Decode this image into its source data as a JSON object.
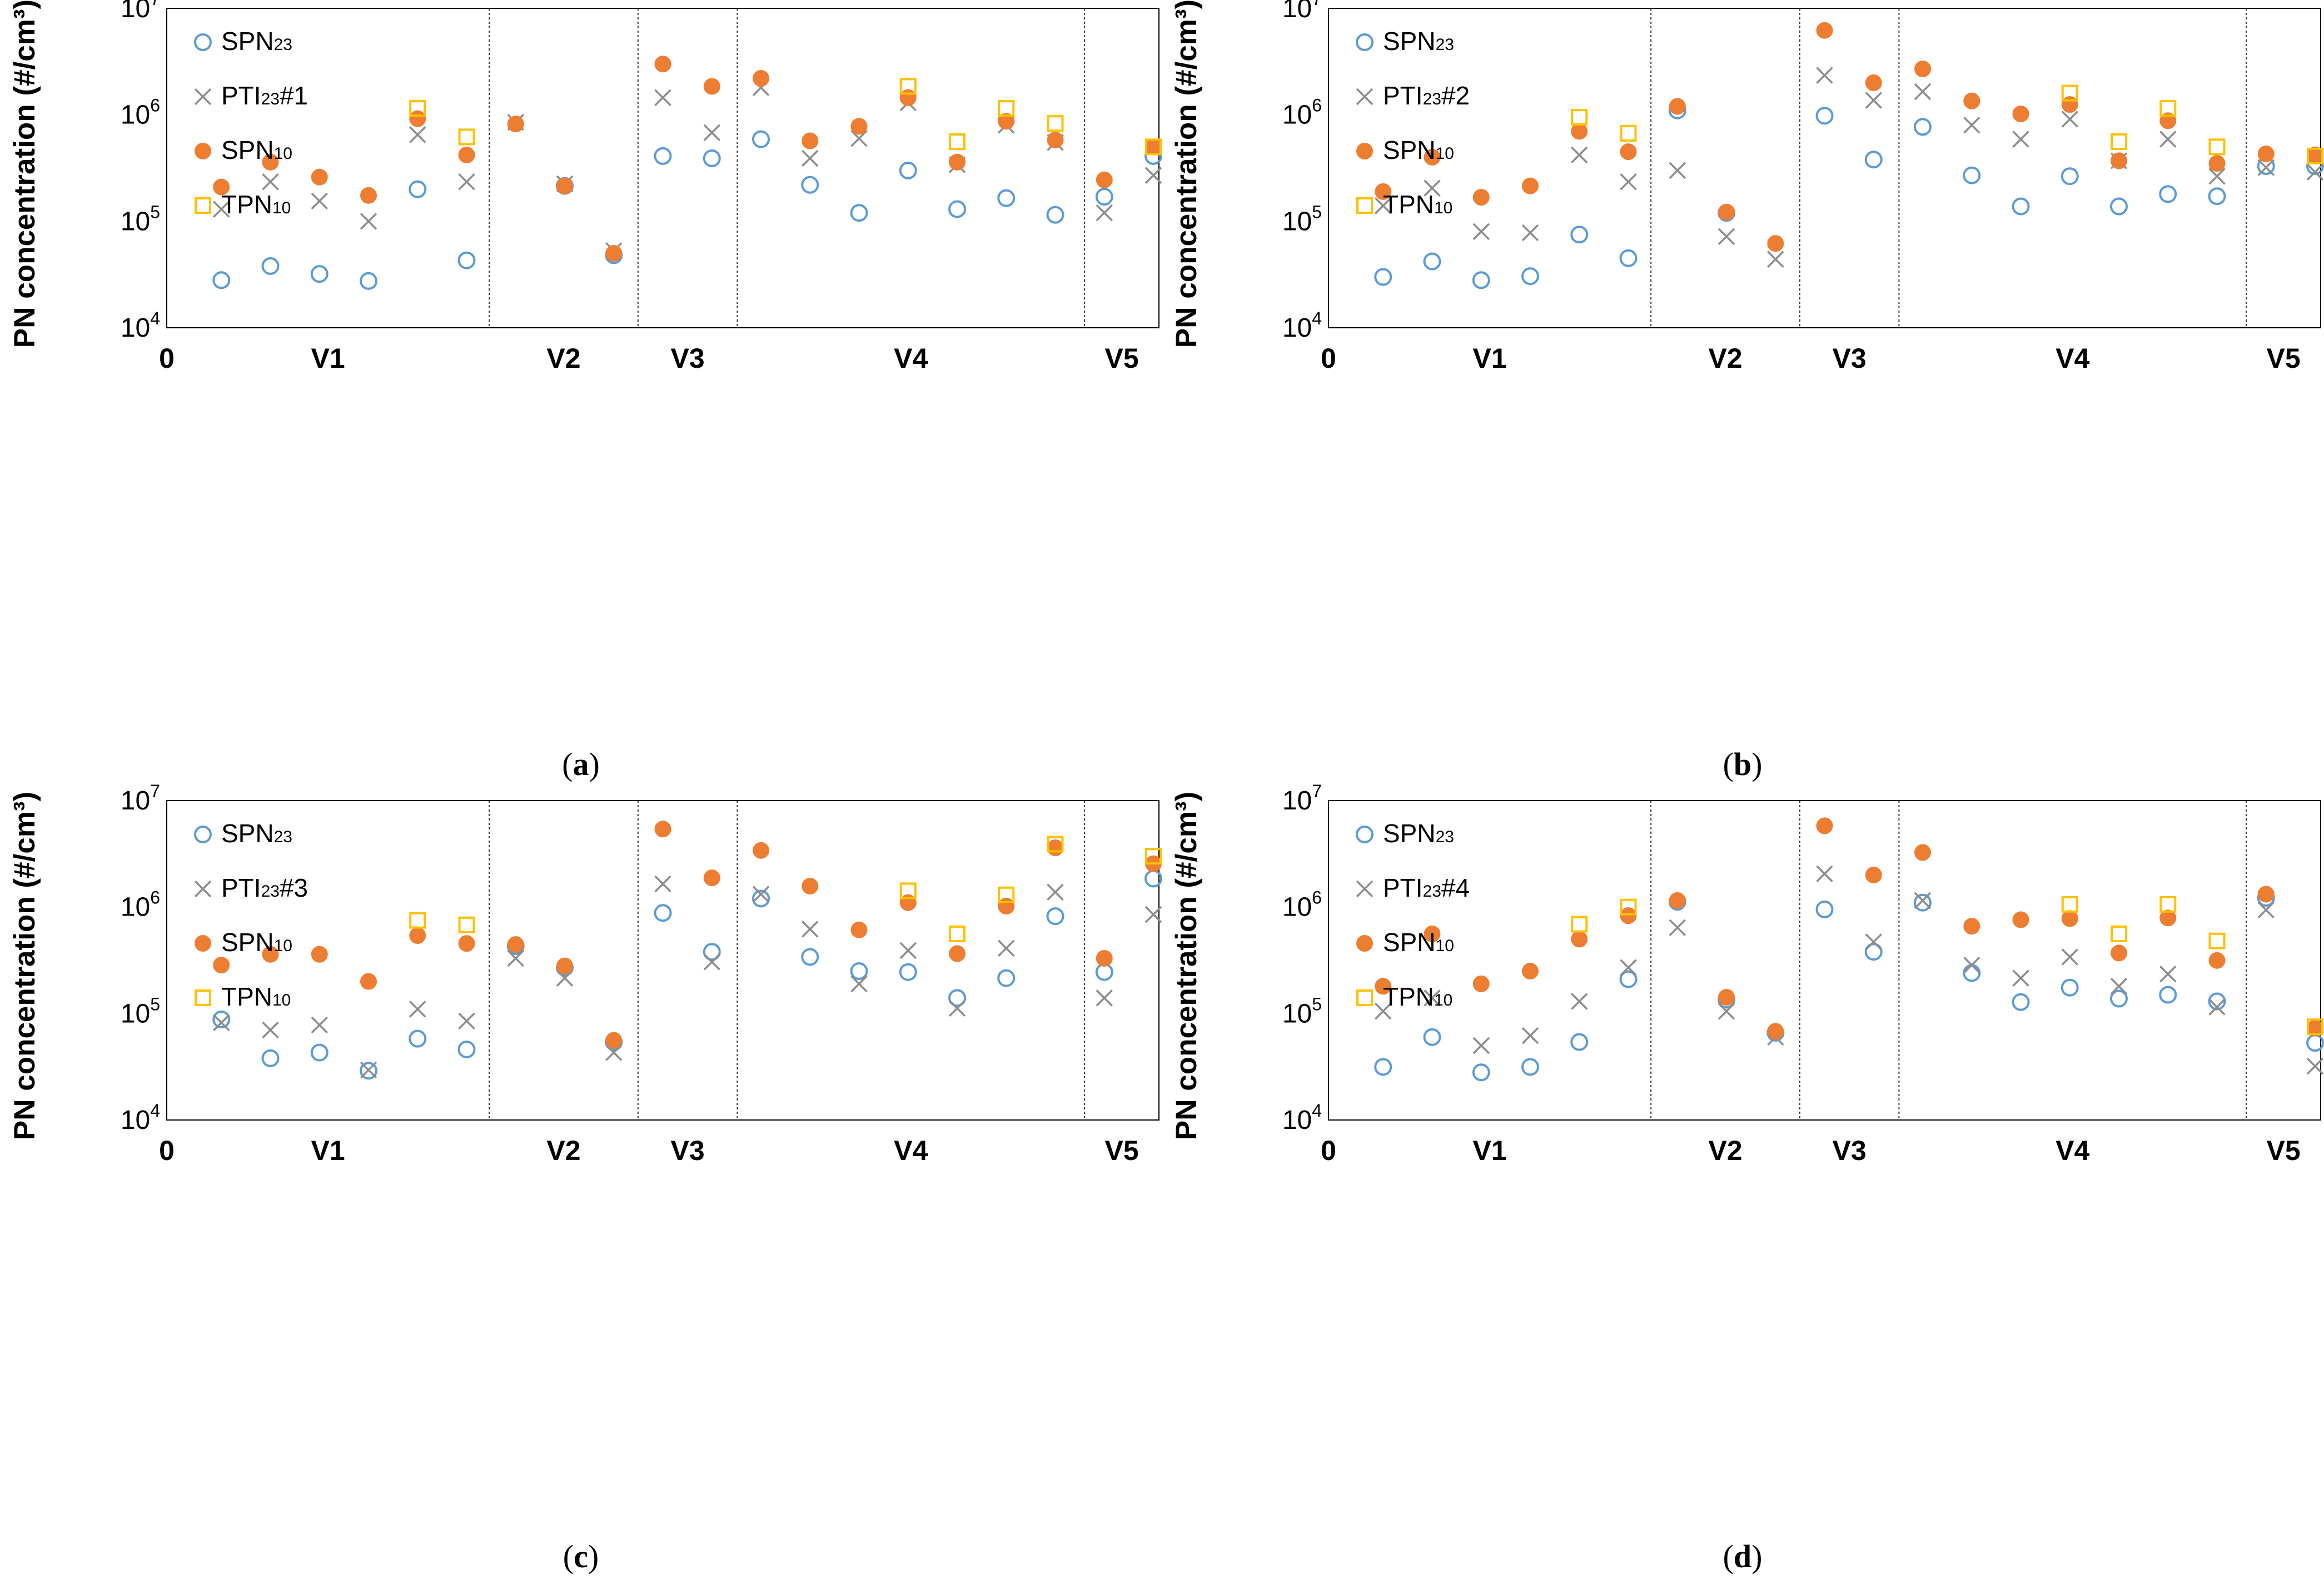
{
  "styles": {
    "SPN23": {
      "marker": "circle-open",
      "color": "#5b9bd5"
    },
    "PTI23": {
      "marker": "cross",
      "color": "#8c8c8c"
    },
    "SPN10": {
      "marker": "circle-filled",
      "color": "#ed7d31"
    },
    "TPN10": {
      "marker": "square-open",
      "color": "#ffc000"
    }
  },
  "chart_data": [
    {
      "type": "scatter",
      "panel_label": "a",
      "ylabel": "PN concentration (#/cm³)",
      "yscale": "log",
      "ylim": [
        10000,
        10000000
      ],
      "y_tick_labels": [
        [
          "10",
          "4"
        ],
        [
          "10",
          "5"
        ],
        [
          "10",
          "6"
        ],
        [
          "10",
          "7"
        ]
      ],
      "x_origin_label": "0",
      "xlim": [
        0,
        20
      ],
      "categories": [
        {
          "label": "V1",
          "from": 0,
          "to": 6.5
        },
        {
          "label": "V2",
          "from": 6.5,
          "to": 9.5
        },
        {
          "label": "V3",
          "from": 9.5,
          "to": 11.5
        },
        {
          "label": "V4",
          "from": 11.5,
          "to": 18.5
        },
        {
          "label": "V5",
          "from": 18.5,
          "to": 20
        }
      ],
      "separators": [
        6.5,
        9.5,
        11.5,
        18.5
      ],
      "legend": [
        {
          "key": "SPN23",
          "base": "SPN",
          "sub": "23",
          "suffix": ""
        },
        {
          "key": "PTI23",
          "base": "PTI",
          "sub": "23",
          "suffix": "#1"
        },
        {
          "key": "SPN10",
          "base": "SPN",
          "sub": "10",
          "suffix": ""
        },
        {
          "key": "TPN10",
          "base": "TPN",
          "sub": "10",
          "suffix": ""
        }
      ],
      "series": [
        {
          "key": "SPN23",
          "x": [
            1,
            2,
            3,
            4,
            5,
            6,
            8,
            9,
            10,
            11,
            12,
            13,
            14,
            15,
            16,
            17,
            18,
            19,
            20
          ],
          "y": [
            28000,
            38000,
            32000,
            27500,
            200000,
            43000,
            215000,
            48000,
            410000,
            390000,
            590000,
            220000,
            120000,
            300000,
            130000,
            165000,
            115000,
            170000,
            410000
          ]
        },
        {
          "key": "PTI23",
          "x": [
            1,
            2,
            3,
            4,
            5,
            6,
            7,
            8,
            9,
            10,
            11,
            12,
            13,
            14,
            15,
            16,
            17,
            18,
            19,
            20
          ],
          "y": [
            130000,
            235000,
            155000,
            100000,
            650000,
            235000,
            850000,
            225000,
            53000,
            1450000,
            680000,
            1800000,
            390000,
            600000,
            1300000,
            340000,
            800000,
            550000,
            120000,
            270000
          ]
        },
        {
          "key": "SPN10",
          "x": [
            1,
            2,
            3,
            4,
            5,
            6,
            7,
            8,
            9,
            10,
            11,
            12,
            13,
            14,
            15,
            16,
            17,
            18,
            19,
            20
          ],
          "y": [
            210000,
            360000,
            260000,
            175000,
            920000,
            420000,
            820000,
            215000,
            50000,
            3000000,
            1850000,
            2200000,
            570000,
            780000,
            1450000,
            360000,
            870000,
            580000,
            245000,
            500000
          ]
        },
        {
          "key": "TPN10",
          "x": [
            5,
            6,
            15,
            16,
            17,
            18,
            20
          ],
          "y": [
            1150000,
            620000,
            1850000,
            560000,
            1150000,
            830000,
            500000
          ]
        }
      ]
    },
    {
      "type": "scatter",
      "panel_label": "b",
      "ylabel": "PN concentration (#/cm³)",
      "yscale": "log",
      "ylim": [
        10000,
        10000000
      ],
      "y_tick_labels": [
        [
          "10",
          "4"
        ],
        [
          "10",
          "5"
        ],
        [
          "10",
          "6"
        ],
        [
          "10",
          "7"
        ]
      ],
      "x_origin_label": "0",
      "xlim": [
        0,
        20
      ],
      "categories": [
        {
          "label": "V1",
          "from": 0,
          "to": 6.5
        },
        {
          "label": "V2",
          "from": 6.5,
          "to": 9.5
        },
        {
          "label": "V3",
          "from": 9.5,
          "to": 11.5
        },
        {
          "label": "V4",
          "from": 11.5,
          "to": 18.5
        },
        {
          "label": "V5",
          "from": 18.5,
          "to": 20
        }
      ],
      "separators": [
        6.5,
        9.5,
        11.5,
        18.5
      ],
      "legend": [
        {
          "key": "SPN23",
          "base": "SPN",
          "sub": "23",
          "suffix": ""
        },
        {
          "key": "PTI23",
          "base": "PTI",
          "sub": "23",
          "suffix": "#2"
        },
        {
          "key": "SPN10",
          "base": "SPN",
          "sub": "10",
          "suffix": ""
        },
        {
          "key": "TPN10",
          "base": "TPN",
          "sub": "10",
          "suffix": ""
        }
      ],
      "series": [
        {
          "key": "SPN23",
          "x": [
            1,
            2,
            3,
            4,
            5,
            6,
            7,
            8,
            10,
            11,
            12,
            13,
            14,
            15,
            16,
            17,
            18,
            19,
            20
          ],
          "y": [
            30000,
            42000,
            28000,
            30500,
            75000,
            45000,
            1100000,
            120000,
            980000,
            380000,
            770000,
            270000,
            138000,
            265000,
            138000,
            180000,
            172000,
            330000,
            330000
          ]
        },
        {
          "key": "PTI23",
          "x": [
            1,
            2,
            3,
            4,
            5,
            6,
            7,
            8,
            9,
            10,
            11,
            12,
            13,
            14,
            15,
            16,
            17,
            18,
            19,
            20
          ],
          "y": [
            140000,
            205000,
            80000,
            78000,
            420000,
            235000,
            300000,
            72000,
            44000,
            2350000,
            1370000,
            1650000,
            800000,
            590000,
            910000,
            370000,
            590000,
            265000,
            320000,
            290000
          ]
        },
        {
          "key": "SPN10",
          "x": [
            1,
            2,
            3,
            4,
            5,
            6,
            7,
            8,
            9,
            10,
            11,
            12,
            13,
            14,
            15,
            16,
            17,
            18,
            19,
            20
          ],
          "y": [
            190000,
            400000,
            168000,
            215000,
            700000,
            450000,
            1200000,
            122000,
            62000,
            6200000,
            2000000,
            2700000,
            1350000,
            1020000,
            1250000,
            370000,
            880000,
            350000,
            430000,
            420000
          ]
        },
        {
          "key": "TPN10",
          "x": [
            5,
            6,
            15,
            16,
            17,
            18,
            20
          ],
          "y": [
            950000,
            670000,
            1600000,
            560000,
            1150000,
            500000,
            410000
          ]
        }
      ]
    },
    {
      "type": "scatter",
      "panel_label": "c",
      "ylabel": "PN concentration (#/cm³)",
      "yscale": "log",
      "ylim": [
        10000,
        10000000
      ],
      "y_tick_labels": [
        [
          "10",
          "4"
        ],
        [
          "10",
          "5"
        ],
        [
          "10",
          "6"
        ],
        [
          "10",
          "7"
        ]
      ],
      "x_origin_label": "0",
      "xlim": [
        0,
        20
      ],
      "categories": [
        {
          "label": "V1",
          "from": 0,
          "to": 6.5
        },
        {
          "label": "V2",
          "from": 6.5,
          "to": 9.5
        },
        {
          "label": "V3",
          "from": 9.5,
          "to": 11.5
        },
        {
          "label": "V4",
          "from": 11.5,
          "to": 18.5
        },
        {
          "label": "V5",
          "from": 18.5,
          "to": 20
        }
      ],
      "separators": [
        6.5,
        9.5,
        11.5,
        18.5
      ],
      "legend": [
        {
          "key": "SPN23",
          "base": "SPN",
          "sub": "23",
          "suffix": ""
        },
        {
          "key": "PTI23",
          "base": "PTI",
          "sub": "23",
          "suffix": "#3"
        },
        {
          "key": "SPN10",
          "base": "SPN",
          "sub": "10",
          "suffix": ""
        },
        {
          "key": "TPN10",
          "base": "TPN",
          "sub": "10",
          "suffix": ""
        }
      ],
      "series": [
        {
          "key": "SPN23",
          "x": [
            1,
            2,
            3,
            4,
            5,
            6,
            7,
            8,
            9,
            10,
            11,
            12,
            13,
            14,
            15,
            16,
            17,
            18,
            19,
            20
          ],
          "y": [
            88000,
            38000,
            43000,
            29000,
            58000,
            46000,
            430000,
            270000,
            54000,
            880000,
            380000,
            1200000,
            340000,
            250000,
            245000,
            140000,
            215000,
            820000,
            245000,
            1850000
          ]
        },
        {
          "key": "PTI23",
          "x": [
            1,
            2,
            3,
            4,
            5,
            6,
            7,
            8,
            9,
            10,
            11,
            12,
            13,
            14,
            15,
            16,
            17,
            18,
            19,
            20
          ],
          "y": [
            82000,
            70000,
            78000,
            29500,
            110000,
            85000,
            330000,
            215000,
            43000,
            1650000,
            305000,
            1320000,
            620000,
            190000,
            390000,
            112000,
            410000,
            1380000,
            140000,
            850000
          ]
        },
        {
          "key": "SPN10",
          "x": [
            1,
            2,
            3,
            4,
            5,
            6,
            7,
            8,
            9,
            10,
            11,
            12,
            13,
            14,
            15,
            16,
            17,
            18,
            19,
            20
          ],
          "y": [
            285000,
            360000,
            360000,
            200000,
            540000,
            455000,
            445000,
            280000,
            56000,
            5400000,
            1880000,
            3400000,
            1570000,
            610000,
            1100000,
            365000,
            1020000,
            3600000,
            330000,
            2550000
          ]
        },
        {
          "key": "TPN10",
          "x": [
            5,
            6,
            15,
            16,
            17,
            18,
            20
          ],
          "y": [
            750000,
            680000,
            1420000,
            560000,
            1300000,
            3900000,
            3000000
          ]
        }
      ]
    },
    {
      "type": "scatter",
      "panel_label": "d",
      "ylabel": "PN concentration (#/cm³)",
      "yscale": "log",
      "ylim": [
        10000,
        10000000
      ],
      "y_tick_labels": [
        [
          "10",
          "4"
        ],
        [
          "10",
          "5"
        ],
        [
          "10",
          "6"
        ],
        [
          "10",
          "7"
        ]
      ],
      "x_origin_label": "0",
      "xlim": [
        0,
        20
      ],
      "categories": [
        {
          "label": "V1",
          "from": 0,
          "to": 6.5
        },
        {
          "label": "V2",
          "from": 6.5,
          "to": 9.5
        },
        {
          "label": "V3",
          "from": 9.5,
          "to": 11.5
        },
        {
          "label": "V4",
          "from": 11.5,
          "to": 18.5
        },
        {
          "label": "V5",
          "from": 18.5,
          "to": 20
        }
      ],
      "separators": [
        6.5,
        9.5,
        11.5,
        18.5
      ],
      "legend": [
        {
          "key": "SPN23",
          "base": "SPN",
          "sub": "23",
          "suffix": ""
        },
        {
          "key": "PTI23",
          "base": "PTI",
          "sub": "23",
          "suffix": "#4"
        },
        {
          "key": "SPN10",
          "base": "SPN",
          "sub": "10",
          "suffix": ""
        },
        {
          "key": "TPN10",
          "base": "TPN",
          "sub": "10",
          "suffix": ""
        }
      ],
      "series": [
        {
          "key": "SPN23",
          "x": [
            1,
            2,
            3,
            4,
            5,
            6,
            7,
            8,
            9,
            10,
            11,
            12,
            13,
            14,
            15,
            16,
            17,
            18,
            19,
            20
          ],
          "y": [
            31500,
            60000,
            28000,
            31500,
            54000,
            210000,
            1120000,
            135000,
            66000,
            950000,
            380000,
            1100000,
            240000,
            128000,
            175000,
            138000,
            150000,
            130000,
            1220000,
            53000
          ]
        },
        {
          "key": "PTI23",
          "x": [
            1,
            2,
            3,
            4,
            5,
            6,
            7,
            8,
            9,
            10,
            11,
            12,
            13,
            14,
            15,
            16,
            17,
            18,
            19,
            20
          ],
          "y": [
            105000,
            140000,
            50000,
            62000,
            130000,
            270000,
            640000,
            105000,
            60000,
            2050000,
            470000,
            1150000,
            285000,
            215000,
            340000,
            180000,
            235000,
            115000,
            940000,
            32000
          ]
        },
        {
          "key": "SPN10",
          "x": [
            1,
            2,
            3,
            4,
            5,
            6,
            7,
            8,
            9,
            10,
            11,
            12,
            13,
            14,
            15,
            16,
            17,
            18,
            19,
            20
          ],
          "y": [
            180000,
            560000,
            190000,
            250000,
            500000,
            830000,
            1150000,
            142000,
            68000,
            5800000,
            2000000,
            3250000,
            660000,
            760000,
            780000,
            370000,
            790000,
            315000,
            1320000,
            73000
          ]
        },
        {
          "key": "TPN10",
          "x": [
            5,
            6,
            15,
            16,
            17,
            18,
            20
          ],
          "y": [
            690000,
            1000000,
            1060000,
            560000,
            1060000,
            480000,
            75000
          ]
        }
      ]
    }
  ]
}
